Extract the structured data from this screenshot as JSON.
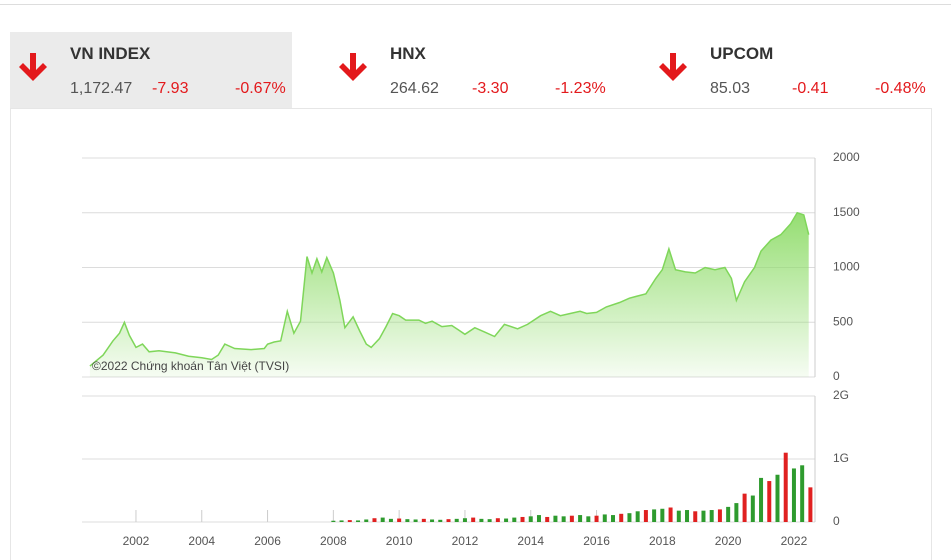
{
  "indices": [
    {
      "name": "VN INDEX",
      "value": "1,172.47",
      "change": "-7.93",
      "percent": "-0.67%"
    },
    {
      "name": "HNX",
      "value": "264.62",
      "change": "-3.30",
      "percent": "-1.23%"
    },
    {
      "name": "UPCOM",
      "value": "85.03",
      "change": "-0.41",
      "percent": "-0.48%"
    }
  ],
  "chart_data": [
    {
      "type": "area",
      "annotation": "©2022 Chứng khoán Tân Việt (TVSI)",
      "color": "#7fd65a",
      "x": [
        2000.6,
        2001.0,
        2001.3,
        2001.5,
        2001.65,
        2001.8,
        2002.0,
        2002.2,
        2002.4,
        2002.7,
        2003.2,
        2003.6,
        2004.0,
        2004.3,
        2004.5,
        2004.7,
        2005.0,
        2005.5,
        2005.9,
        2006.0,
        2006.2,
        2006.4,
        2006.6,
        2006.8,
        2007.0,
        2007.2,
        2007.35,
        2007.5,
        2007.65,
        2007.8,
        2008.0,
        2008.2,
        2008.35,
        2008.6,
        2008.8,
        2009.0,
        2009.15,
        2009.4,
        2009.6,
        2009.8,
        2010.0,
        2010.2,
        2010.6,
        2010.8,
        2011.0,
        2011.3,
        2011.6,
        2011.8,
        2012.0,
        2012.3,
        2012.6,
        2012.9,
        2013.2,
        2013.6,
        2013.9,
        2014.0,
        2014.3,
        2014.6,
        2014.9,
        2015.2,
        2015.5,
        2015.7,
        2016.0,
        2016.3,
        2016.7,
        2017.0,
        2017.5,
        2017.8,
        2018.0,
        2018.2,
        2018.4,
        2018.7,
        2019.0,
        2019.3,
        2019.6,
        2019.9,
        2020.1,
        2020.25,
        2020.5,
        2020.8,
        2021.0,
        2021.3,
        2021.6,
        2021.9,
        2022.1,
        2022.3,
        2022.45
      ],
      "values": [
        100,
        200,
        330,
        400,
        500,
        380,
        270,
        300,
        230,
        240,
        220,
        190,
        175,
        160,
        200,
        300,
        260,
        250,
        260,
        300,
        320,
        330,
        600,
        400,
        510,
        1100,
        950,
        1080,
        960,
        1090,
        950,
        700,
        450,
        550,
        420,
        300,
        270,
        350,
        460,
        580,
        560,
        520,
        520,
        490,
        510,
        460,
        470,
        430,
        390,
        450,
        410,
        370,
        480,
        440,
        480,
        500,
        560,
        600,
        560,
        580,
        600,
        580,
        590,
        640,
        680,
        720,
        760,
        900,
        980,
        1170,
        980,
        960,
        950,
        1000,
        980,
        1000,
        900,
        700,
        870,
        1000,
        1150,
        1250,
        1300,
        1400,
        1500,
        1480,
        1300
      ],
      "xlim": [
        2000.36,
        2022.64
      ],
      "ylim": [
        0,
        2000
      ],
      "yticks": [
        0,
        500,
        1000,
        1500,
        2000
      ],
      "grid": true
    },
    {
      "type": "bar",
      "x": [
        2008.0,
        2008.25,
        2008.5,
        2008.75,
        2009.0,
        2009.25,
        2009.5,
        2009.75,
        2010.0,
        2010.25,
        2010.5,
        2010.75,
        2011.0,
        2011.25,
        2011.5,
        2011.75,
        2012.0,
        2012.25,
        2012.5,
        2012.75,
        2013.0,
        2013.25,
        2013.5,
        2013.75,
        2014.0,
        2014.25,
        2014.5,
        2014.75,
        2015.0,
        2015.25,
        2015.5,
        2015.75,
        2016.0,
        2016.25,
        2016.5,
        2016.75,
        2017.0,
        2017.25,
        2017.5,
        2017.75,
        2018.0,
        2018.25,
        2018.5,
        2018.75,
        2019.0,
        2019.25,
        2019.5,
        2019.75,
        2020.0,
        2020.25,
        2020.5,
        2020.75,
        2021.0,
        2021.25,
        2021.5,
        2021.75,
        2022.0,
        2022.25,
        2022.5
      ],
      "values": [
        20000000,
        25000000,
        30000000,
        25000000,
        40000000,
        60000000,
        70000000,
        50000000,
        55000000,
        45000000,
        40000000,
        50000000,
        40000000,
        35000000,
        45000000,
        50000000,
        60000000,
        70000000,
        50000000,
        45000000,
        60000000,
        55000000,
        70000000,
        80000000,
        90000000,
        110000000,
        80000000,
        100000000,
        90000000,
        100000000,
        110000000,
        90000000,
        100000000,
        120000000,
        110000000,
        130000000,
        140000000,
        170000000,
        190000000,
        200000000,
        210000000,
        230000000,
        180000000,
        190000000,
        170000000,
        180000000,
        190000000,
        200000000,
        240000000,
        300000000,
        450000000,
        420000000,
        700000000,
        650000000,
        750000000,
        1100000000,
        850000000,
        900000000,
        550000000
      ],
      "bar_colors": [
        "#2e9b2e",
        "#2e9b2e",
        "#e02020",
        "#2e9b2e",
        "#2e9b2e",
        "#e02020",
        "#2e9b2e",
        "#2e9b2e",
        "#e02020",
        "#2e9b2e",
        "#2e9b2e",
        "#e02020",
        "#2e9b2e",
        "#2e9b2e",
        "#e02020",
        "#2e9b2e",
        "#2e9b2e",
        "#e02020",
        "#2e9b2e",
        "#2e9b2e",
        "#e02020",
        "#2e9b2e",
        "#2e9b2e",
        "#e02020",
        "#2e9b2e",
        "#2e9b2e",
        "#e02020",
        "#2e9b2e",
        "#2e9b2e",
        "#e02020",
        "#2e9b2e",
        "#2e9b2e",
        "#e02020",
        "#2e9b2e",
        "#2e9b2e",
        "#e02020",
        "#2e9b2e",
        "#2e9b2e",
        "#e02020",
        "#2e9b2e",
        "#2e9b2e",
        "#e02020",
        "#2e9b2e",
        "#2e9b2e",
        "#e02020",
        "#2e9b2e",
        "#2e9b2e",
        "#e02020",
        "#2e9b2e",
        "#2e9b2e",
        "#e02020",
        "#2e9b2e",
        "#2e9b2e",
        "#e02020",
        "#2e9b2e",
        "#e02020",
        "#2e9b2e",
        "#2e9b2e",
        "#e02020"
      ],
      "xlim": [
        2000.36,
        2022.64
      ],
      "xticks": [
        2002,
        2004,
        2006,
        2008,
        2010,
        2012,
        2014,
        2016,
        2018,
        2020,
        2022
      ],
      "ylim": [
        0,
        2000000000
      ],
      "yticks": [
        {
          "value": 0,
          "label": "0"
        },
        {
          "value": 1000000000,
          "label": "1G"
        },
        {
          "value": 2000000000,
          "label": "2G"
        }
      ],
      "grid": true
    }
  ]
}
